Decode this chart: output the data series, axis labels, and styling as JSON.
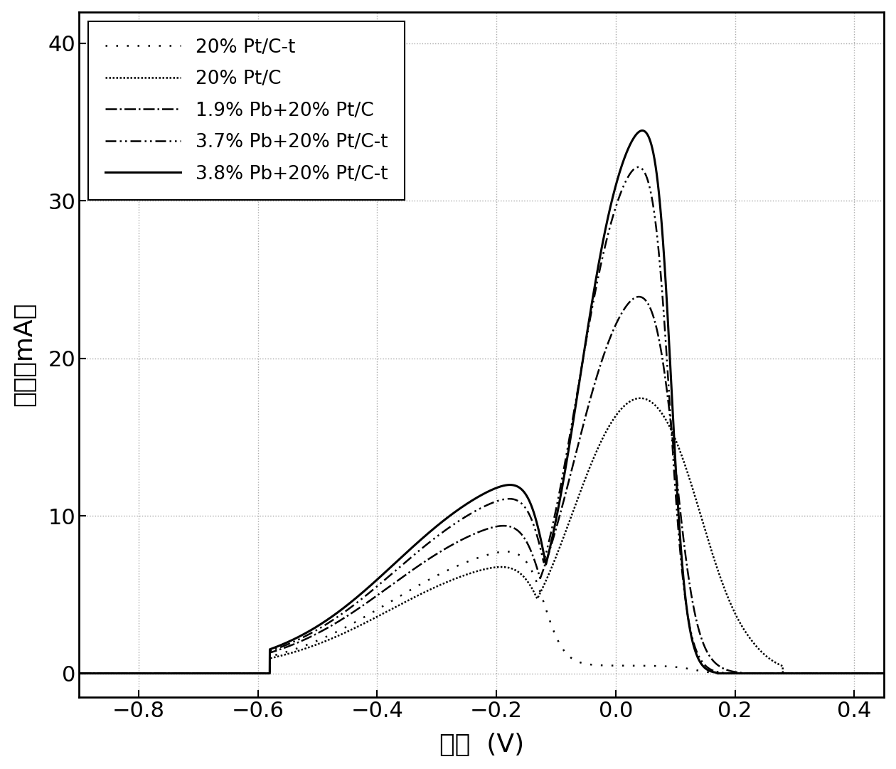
{
  "xlabel": "电势  (V)",
  "ylabel": "电流（mA）",
  "xlim": [
    -0.9,
    0.45
  ],
  "ylim": [
    -1.5,
    42
  ],
  "xticks": [
    -0.8,
    -0.6,
    -0.4,
    -0.2,
    0.0,
    0.2,
    0.4
  ],
  "yticks": [
    0,
    10,
    20,
    30,
    40
  ],
  "grid_color": "#aaaaaa",
  "background": "#ffffff",
  "legend_entries": [
    "20% Pt/C-t",
    "20% Pt/C",
    "1.9% Pb+20% Pt/C",
    "3.7% Pb+20% Pt/C-t",
    "3.8% Pb+20% Pt/C-t"
  ]
}
